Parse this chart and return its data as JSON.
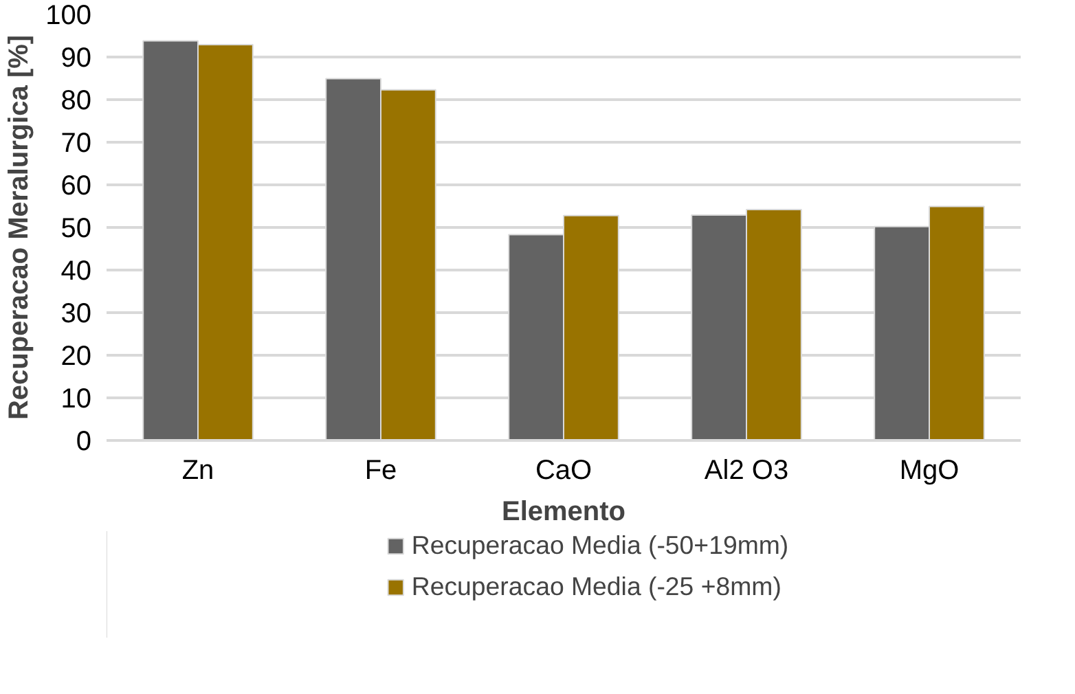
{
  "chart_data": {
    "type": "bar",
    "xlabel": "Elemento",
    "ylabel": "Recuperacao Meralurgica [%]",
    "categories": [
      "Zn",
      "Fe",
      "CaO",
      "Al2 O3",
      "MgO"
    ],
    "series": [
      {
        "name": "Recuperacao Media (-50+19mm)",
        "color": "#636363",
        "values": [
          93.8,
          84.9,
          48.3,
          52.9,
          50.2
        ]
      },
      {
        "name": "Recuperacao Media (-25 +8mm)",
        "color": "#997300",
        "values": [
          92.9,
          82.3,
          52.8,
          54.2,
          54.9
        ]
      }
    ],
    "ylim": [
      0,
      100
    ],
    "yticks": [
      0,
      10,
      20,
      30,
      40,
      50,
      60,
      70,
      80,
      90,
      100
    ],
    "grid": "y",
    "legend": "bottom"
  }
}
